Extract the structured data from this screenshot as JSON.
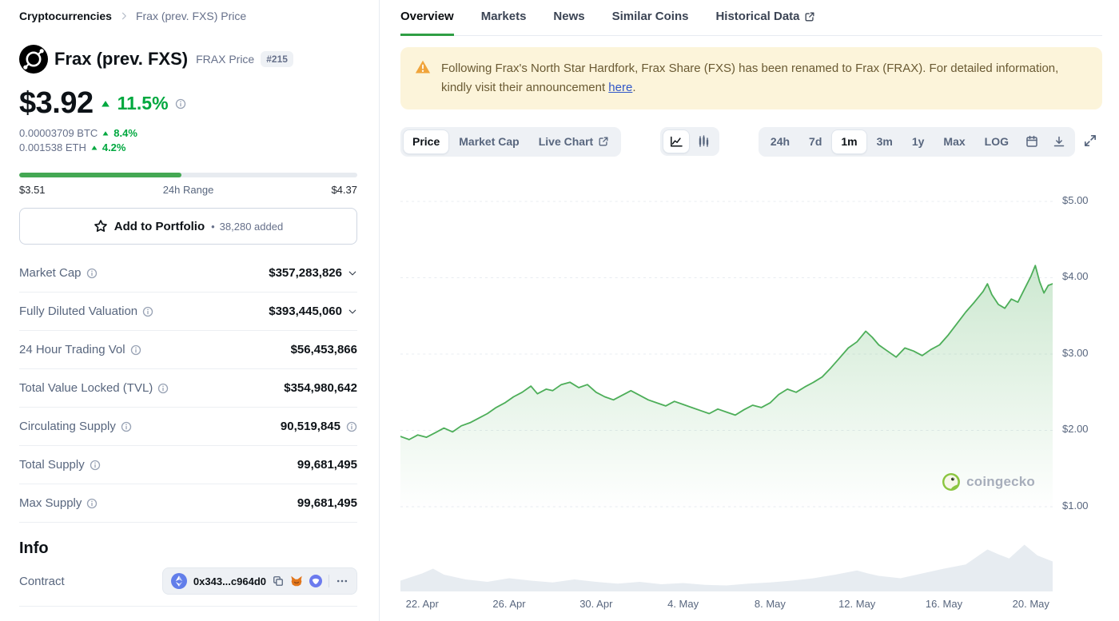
{
  "colors": {
    "positive_green": "#00a83f",
    "chart_line_green": "#4DAE59",
    "tab_accent_green": "#2f9e44",
    "notice_bg": "#fcf4da",
    "warning_icon": "#F0A43B"
  },
  "breadcrumb": {
    "home": "Cryptocurrencies",
    "current": "Frax (prev. FXS) Price"
  },
  "header": {
    "name": "Frax (prev. FXS)",
    "price_label": "FRAX Price",
    "rank": "#215"
  },
  "price_block": {
    "usd": "$3.92",
    "change_pct": "11.5%",
    "btc_value": "0.00003709 BTC",
    "btc_change": "8.4%",
    "eth_value": "0.001538 ETH",
    "eth_change": "4.2%"
  },
  "range_bar": {
    "low": "$3.51",
    "label": "24h Range",
    "high": "$4.37",
    "fill_percent": 48
  },
  "portfolio_button": {
    "label": "Add to Portfolio",
    "separator": "•",
    "added_count": "38,280 added"
  },
  "stats": [
    {
      "label": "Market Cap",
      "value": "$357,283,826"
    },
    {
      "label": "Fully Diluted Valuation",
      "value": "$393,445,060"
    },
    {
      "label": "24 Hour Trading Vol",
      "value": "$56,453,866"
    },
    {
      "label": "Total Value Locked (TVL)",
      "value": "$354,980,642"
    },
    {
      "label": "Circulating Supply",
      "value": "90,519,845"
    },
    {
      "label": "Total Supply",
      "value": "99,681,495"
    },
    {
      "label": "Max Supply",
      "value": "99,681,495"
    }
  ],
  "info_section": {
    "title": "Info",
    "contract_label": "Contract",
    "contract_address": "0x343...c964d0"
  },
  "tabs": [
    {
      "label": "Overview",
      "active": true
    },
    {
      "label": "Markets"
    },
    {
      "label": "News"
    },
    {
      "label": "Similar Coins"
    },
    {
      "label": "Historical Data",
      "external": true
    }
  ],
  "notice": {
    "prefix": "Following Frax's North Star Hardfork, Frax Share (FXS) has been renamed to Frax (FRAX). For detailed information, kindly visit their announcement ",
    "link_text": "here",
    "suffix": "."
  },
  "chart_controls": {
    "view_buttons": [
      {
        "label": "Price",
        "active": true
      },
      {
        "label": "Market Cap"
      },
      {
        "label": "Live Chart",
        "external": true
      }
    ],
    "range_buttons": [
      {
        "label": "24h"
      },
      {
        "label": "7d"
      },
      {
        "label": "1m",
        "active": true
      },
      {
        "label": "3m"
      },
      {
        "label": "1y"
      },
      {
        "label": "Max"
      },
      {
        "label": "LOG"
      }
    ]
  },
  "chart_data": {
    "type": "line",
    "title": "FRAX price in USD, 1 month",
    "watermark": "coingecko",
    "x_range": [
      0,
      30
    ],
    "y_range_usd": [
      1.0,
      5.0
    ],
    "y_ticks": [
      {
        "label": "$5.00",
        "value": 5
      },
      {
        "label": "$4.00",
        "value": 4
      },
      {
        "label": "$3.00",
        "value": 3
      },
      {
        "label": "$2.00",
        "value": 2
      },
      {
        "label": "$1.00",
        "value": 1
      }
    ],
    "x_ticks": [
      {
        "label": "22. Apr",
        "day": 1
      },
      {
        "label": "26. Apr",
        "day": 5
      },
      {
        "label": "30. Apr",
        "day": 9
      },
      {
        "label": "4. May",
        "day": 13
      },
      {
        "label": "8. May",
        "day": 17
      },
      {
        "label": "12. May",
        "day": 21
      },
      {
        "label": "16. May",
        "day": 25
      },
      {
        "label": "20. May",
        "day": 29
      }
    ],
    "points": [
      [
        0,
        1.92
      ],
      [
        0.4,
        1.88
      ],
      [
        0.8,
        1.94
      ],
      [
        1.2,
        1.91
      ],
      [
        1.6,
        1.97
      ],
      [
        2,
        2.03
      ],
      [
        2.4,
        1.98
      ],
      [
        2.8,
        2.06
      ],
      [
        3.2,
        2.1
      ],
      [
        3.6,
        2.16
      ],
      [
        4,
        2.22
      ],
      [
        4.4,
        2.3
      ],
      [
        4.8,
        2.36
      ],
      [
        5.2,
        2.44
      ],
      [
        5.6,
        2.5
      ],
      [
        6,
        2.58
      ],
      [
        6.3,
        2.48
      ],
      [
        6.7,
        2.54
      ],
      [
        7,
        2.52
      ],
      [
        7.4,
        2.6
      ],
      [
        7.8,
        2.63
      ],
      [
        8.2,
        2.56
      ],
      [
        8.6,
        2.6
      ],
      [
        9,
        2.5
      ],
      [
        9.4,
        2.44
      ],
      [
        9.8,
        2.4
      ],
      [
        10.2,
        2.46
      ],
      [
        10.6,
        2.52
      ],
      [
        11,
        2.46
      ],
      [
        11.4,
        2.4
      ],
      [
        11.8,
        2.36
      ],
      [
        12.2,
        2.32
      ],
      [
        12.6,
        2.38
      ],
      [
        13,
        2.34
      ],
      [
        13.4,
        2.3
      ],
      [
        13.8,
        2.26
      ],
      [
        14.2,
        2.22
      ],
      [
        14.6,
        2.28
      ],
      [
        15,
        2.24
      ],
      [
        15.4,
        2.2
      ],
      [
        15.8,
        2.27
      ],
      [
        16.2,
        2.33
      ],
      [
        16.6,
        2.3
      ],
      [
        17,
        2.36
      ],
      [
        17.4,
        2.47
      ],
      [
        17.8,
        2.54
      ],
      [
        18.2,
        2.5
      ],
      [
        18.6,
        2.57
      ],
      [
        19,
        2.63
      ],
      [
        19.4,
        2.7
      ],
      [
        19.8,
        2.82
      ],
      [
        20.2,
        2.95
      ],
      [
        20.6,
        3.08
      ],
      [
        21,
        3.16
      ],
      [
        21.4,
        3.3
      ],
      [
        21.7,
        3.22
      ],
      [
        22,
        3.12
      ],
      [
        22.4,
        3.04
      ],
      [
        22.8,
        2.96
      ],
      [
        23.2,
        3.08
      ],
      [
        23.6,
        3.04
      ],
      [
        24,
        2.98
      ],
      [
        24.4,
        3.06
      ],
      [
        24.8,
        3.12
      ],
      [
        25.2,
        3.25
      ],
      [
        25.6,
        3.4
      ],
      [
        26,
        3.55
      ],
      [
        26.4,
        3.68
      ],
      [
        26.8,
        3.82
      ],
      [
        27,
        3.92
      ],
      [
        27.2,
        3.78
      ],
      [
        27.5,
        3.65
      ],
      [
        27.8,
        3.6
      ],
      [
        28.1,
        3.72
      ],
      [
        28.4,
        3.68
      ],
      [
        28.7,
        3.85
      ],
      [
        29,
        4.02
      ],
      [
        29.2,
        4.16
      ],
      [
        29.4,
        3.95
      ],
      [
        29.6,
        3.8
      ],
      [
        29.8,
        3.9
      ],
      [
        30,
        3.92
      ]
    ],
    "volume_rel": [
      [
        0,
        0.18
      ],
      [
        1,
        0.3
      ],
      [
        1.5,
        0.38
      ],
      [
        2,
        0.28
      ],
      [
        3,
        0.2
      ],
      [
        4,
        0.16
      ],
      [
        5,
        0.22
      ],
      [
        6,
        0.18
      ],
      [
        7,
        0.15
      ],
      [
        8,
        0.2
      ],
      [
        9,
        0.16
      ],
      [
        10,
        0.13
      ],
      [
        11,
        0.16
      ],
      [
        12,
        0.12
      ],
      [
        13,
        0.14
      ],
      [
        14,
        0.11
      ],
      [
        15,
        0.1
      ],
      [
        16,
        0.13
      ],
      [
        17,
        0.15
      ],
      [
        18,
        0.18
      ],
      [
        19,
        0.22
      ],
      [
        20,
        0.28
      ],
      [
        21,
        0.35
      ],
      [
        21.5,
        0.3
      ],
      [
        22,
        0.26
      ],
      [
        23,
        0.22
      ],
      [
        24,
        0.3
      ],
      [
        25,
        0.38
      ],
      [
        26,
        0.45
      ],
      [
        27,
        0.7
      ],
      [
        27.5,
        0.62
      ],
      [
        28,
        0.55
      ],
      [
        28.7,
        0.78
      ],
      [
        29.3,
        0.6
      ],
      [
        30,
        0.5
      ]
    ]
  }
}
